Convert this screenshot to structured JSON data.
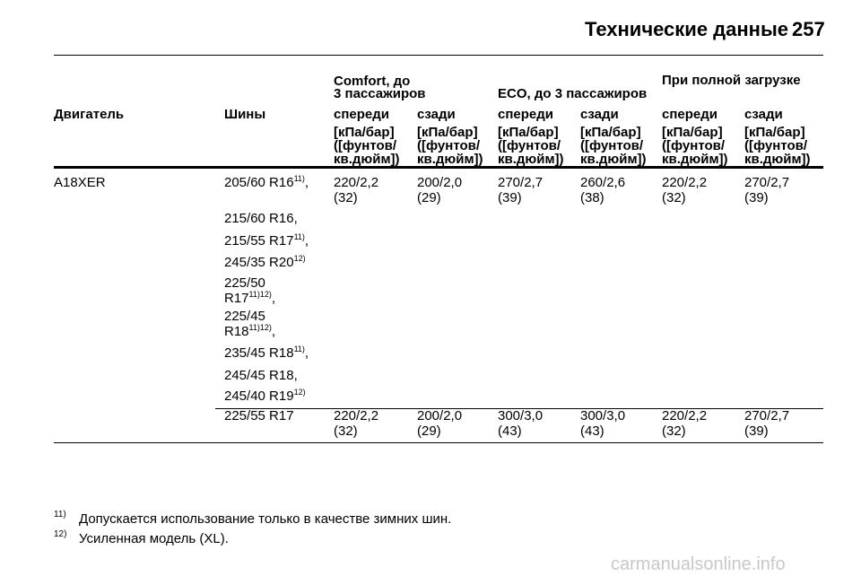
{
  "header": {
    "title": "Технические данные",
    "page": "257"
  },
  "table": {
    "groups": [
      {
        "lines": [
          "Comfort, до",
          "3 пассажиров"
        ]
      },
      {
        "lines": [
          "ECO, до 3 пассажиров"
        ]
      },
      {
        "lines": [
          "При полной загрузке"
        ]
      }
    ],
    "col_engine": "Двигатель",
    "col_tires": "Шины",
    "columns": [
      {
        "label": "спереди",
        "units": [
          "[кПа/бар]",
          "([фунтов/",
          "кв.дюйм])"
        ]
      },
      {
        "label": "сзади",
        "units": [
          "[кПа/бар]",
          "([фунтов/",
          "кв.дюйм])"
        ]
      },
      {
        "label": "спереди",
        "units": [
          "[кПа/бар]",
          "([фунтов/",
          "кв.дюйм])"
        ]
      },
      {
        "label": "сзади",
        "units": [
          "[кПа/бар]",
          "([фунтов/",
          "кв.дюйм])"
        ]
      },
      {
        "label": "спереди",
        "units": [
          "[кПа/бар]",
          "([фунтов/",
          "кв.дюйм])"
        ]
      },
      {
        "label": "сзади",
        "units": [
          "[кПа/бар]",
          "([фунтов/",
          "кв.дюйм])"
        ]
      }
    ],
    "rows": [
      {
        "engine": "A18XER",
        "tires": [
          {
            "lines": [
              "205/60 R16"
            ],
            "sup": "11)",
            "suffix": ","
          },
          {
            "lines": [
              "215/60 R16"
            ],
            "suffix": ","
          },
          {
            "lines": [
              "215/55 R17"
            ],
            "sup": "11)",
            "suffix": ","
          },
          {
            "lines": [
              "245/35 R20"
            ],
            "sup": "12)"
          },
          {
            "lines": [
              "225/50",
              "R17"
            ],
            "sup": "11)12)",
            "suffix": ","
          },
          {
            "lines": [
              "225/45",
              "R18"
            ],
            "sup": "11)12)",
            "suffix": ","
          },
          {
            "lines": [
              "235/45 R18"
            ],
            "sup": "11)",
            "suffix": ","
          },
          {
            "lines": [
              "245/45 R18"
            ],
            "suffix": ","
          },
          {
            "lines": [
              "245/40 R19"
            ],
            "sup": "12)"
          }
        ],
        "values": [
          [
            "220/2,2",
            "(32)"
          ],
          [
            "200/2,0",
            "(29)"
          ],
          [
            "270/2,7",
            "(39)"
          ],
          [
            "260/2,6",
            "(38)"
          ],
          [
            "220/2,2",
            "(32)"
          ],
          [
            "270/2,7",
            "(39)"
          ]
        ]
      },
      {
        "tires": [
          {
            "lines": [
              "225/55 R17"
            ]
          }
        ],
        "values": [
          [
            "220/2,2",
            "(32)"
          ],
          [
            "200/2,0",
            "(29)"
          ],
          [
            "300/3,0",
            "(43)"
          ],
          [
            "300/3,0",
            "(43)"
          ],
          [
            "220/2,2",
            "(32)"
          ],
          [
            "270/2,7",
            "(39)"
          ]
        ]
      }
    ]
  },
  "footnotes": [
    {
      "mark": "11)",
      "text": "Допускается использование только в качестве зимних шин."
    },
    {
      "mark": "12)",
      "text": "Усиленная модель (XL)."
    }
  ],
  "watermark": "carmanualsonline.info"
}
